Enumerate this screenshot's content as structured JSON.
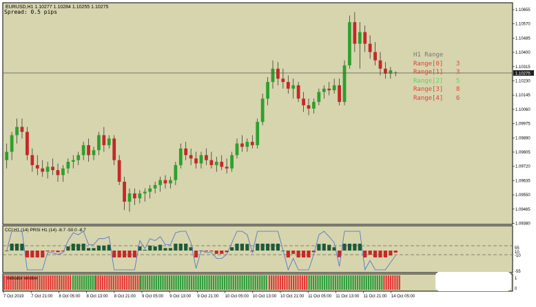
{
  "header": {
    "symbol_line": "EURUSD,H1  1.10277 1.10284 1.10255 1.10275",
    "spread": "Spread:  0.5 pips"
  },
  "price_axis": {
    "labels": [
      "1.10655",
      "1.10570",
      "1.10485",
      "1.10400",
      "1.10315",
      "1.10230",
      "1.10145",
      "1.10060",
      "1.09975",
      "1.09890",
      "1.09805",
      "1.09720",
      "1.09635",
      "1.09550",
      "1.09465",
      "1.09380"
    ],
    "current_price": "1.10275"
  },
  "range_panel": {
    "title": "H1 Range",
    "rows": [
      {
        "label": "Range[0]",
        "value": "3",
        "color": "#e0403a"
      },
      {
        "label": "Range[1]",
        "value": "3",
        "color": "#e0403a"
      },
      {
        "label": "Range[2]",
        "value": "5",
        "color": "#5fd35f"
      },
      {
        "label": "Range[3]",
        "value": "8",
        "color": "#e0403a"
      },
      {
        "label": "Range[4]",
        "value": "6",
        "color": "#e0403a"
      }
    ]
  },
  "indicator1": {
    "label": "CCI H1 (14) PRSI H1 (14) -8.7 -50.0 -8.7",
    "axis_labels": [
      "55",
      "10",
      "-10",
      "-55"
    ]
  },
  "indicator2": {
    "label": "Indicator window",
    "axis_labels": [
      "1",
      "0"
    ]
  },
  "time_axis": {
    "labels": [
      "7 Oct 2019",
      "7 Oct 21:00",
      "8 Oct 05:00",
      "8 Oct 13:00",
      "8 Oct 21:00",
      "9 Oct 05:00",
      "9 Oct 13:00",
      "9 Oct 21:00",
      "10 Oct 05:00",
      "10 Oct 13:00",
      "10 Oct 21:00",
      "11 Oct 05:00",
      "11 Oct 13:00",
      "11 Oct 21:00",
      "14 Oct 05:00"
    ]
  },
  "colors": {
    "background": "#d6d5ad",
    "bull": "#2ea02e",
    "bear": "#c62828",
    "grid_line": "#222222"
  },
  "chart_data": {
    "type": "candlestick",
    "symbol": "EURUSD",
    "timeframe": "H1",
    "ylim": [
      1.0938,
      1.1068
    ],
    "candles": [
      [
        1.0975,
        1.0985,
        1.097,
        1.098
      ],
      [
        1.098,
        1.0992,
        1.0975,
        1.099
      ],
      [
        1.099,
        1.1,
        1.0985,
        1.0995
      ],
      [
        1.0995,
        1.1,
        1.0988,
        1.0992
      ],
      [
        1.0992,
        1.0995,
        1.0975,
        1.0978
      ],
      [
        1.0978,
        1.0982,
        1.0968,
        1.0972
      ],
      [
        1.0972,
        1.0978,
        1.0966,
        1.097
      ],
      [
        1.097,
        1.0975,
        1.0965,
        1.0968
      ],
      [
        1.0968,
        1.0974,
        1.0964,
        1.0971
      ],
      [
        1.0971,
        1.0976,
        1.0966,
        1.0969
      ],
      [
        1.0969,
        1.0973,
        1.0962,
        1.0966
      ],
      [
        1.0966,
        1.0972,
        1.0962,
        1.097
      ],
      [
        1.097,
        1.0976,
        1.0967,
        1.0974
      ],
      [
        1.0974,
        1.0978,
        1.097,
        1.0975
      ],
      [
        1.0975,
        1.098,
        1.0972,
        1.0978
      ],
      [
        1.0978,
        1.0986,
        1.0975,
        1.0984
      ],
      [
        1.0984,
        1.0988,
        1.0974,
        1.0978
      ],
      [
        1.0978,
        1.0983,
        1.0975,
        1.0981
      ],
      [
        1.0981,
        1.0992,
        1.0978,
        1.099
      ],
      [
        1.099,
        1.0995,
        1.098,
        1.0984
      ],
      [
        1.0984,
        1.099,
        1.0982,
        1.0988
      ],
      [
        1.0988,
        1.099,
        1.0972,
        1.0975
      ],
      [
        1.0975,
        1.0978,
        1.096,
        1.0962
      ],
      [
        1.0962,
        1.0965,
        1.0945,
        1.095
      ],
      [
        1.095,
        1.0958,
        1.0944,
        1.0955
      ],
      [
        1.0955,
        1.0958,
        1.0948,
        1.0952
      ],
      [
        1.0952,
        1.0957,
        1.0949,
        1.0955
      ],
      [
        1.0955,
        1.0958,
        1.095,
        1.0956
      ],
      [
        1.0956,
        1.096,
        1.0952,
        1.0958
      ],
      [
        1.0958,
        1.0962,
        1.0955,
        1.096
      ],
      [
        1.096,
        1.0965,
        1.0956,
        1.0963
      ],
      [
        1.0963,
        1.0966,
        1.0958,
        1.0961
      ],
      [
        1.0961,
        1.0965,
        1.0958,
        1.0963
      ],
      [
        1.0963,
        1.0974,
        1.096,
        1.0972
      ],
      [
        1.0972,
        1.0985,
        1.097,
        1.0982
      ],
      [
        1.0982,
        1.0986,
        1.0975,
        1.0978
      ],
      [
        1.0978,
        1.0982,
        1.0972,
        1.0976
      ],
      [
        1.0976,
        1.098,
        1.097,
        1.0973
      ],
      [
        1.0973,
        1.098,
        1.097,
        1.0978
      ],
      [
        1.0978,
        1.0982,
        1.0972,
        1.0975
      ],
      [
        1.0975,
        1.098,
        1.097,
        1.0972
      ],
      [
        1.0972,
        1.0977,
        1.0968,
        1.0974
      ],
      [
        1.0974,
        1.0978,
        1.0969,
        1.0971
      ],
      [
        1.0971,
        1.0976,
        1.0967,
        1.097
      ],
      [
        1.097,
        1.098,
        1.0968,
        1.0978
      ],
      [
        1.0978,
        1.0988,
        1.0976,
        1.0985
      ],
      [
        1.0985,
        1.099,
        1.098,
        1.0983
      ],
      [
        1.0983,
        1.0988,
        1.098,
        1.0986
      ],
      [
        1.0986,
        1.099,
        1.0982,
        1.0984
      ],
      [
        1.0984,
        1.1,
        1.0982,
        1.0998
      ],
      [
        1.0998,
        1.1015,
        1.0996,
        1.1012
      ],
      [
        1.1012,
        1.1025,
        1.1008,
        1.1022
      ],
      [
        1.1022,
        1.1035,
        1.1018,
        1.103
      ],
      [
        1.103,
        1.1034,
        1.102,
        1.1024
      ],
      [
        1.1024,
        1.103,
        1.1018,
        1.1022
      ],
      [
        1.1022,
        1.1026,
        1.1015,
        1.1018
      ],
      [
        1.1018,
        1.1024,
        1.1012,
        1.102
      ],
      [
        1.102,
        1.1022,
        1.101,
        1.1012
      ],
      [
        1.1012,
        1.1016,
        1.1004,
        1.1008
      ],
      [
        1.1008,
        1.1012,
        1.1002,
        1.1006
      ],
      [
        1.1006,
        1.1012,
        1.1003,
        1.101
      ],
      [
        1.101,
        1.1018,
        1.1008,
        1.1016
      ],
      [
        1.1016,
        1.102,
        1.1012,
        1.1018
      ],
      [
        1.1018,
        1.1022,
        1.1014,
        1.1017
      ],
      [
        1.1017,
        1.1024,
        1.1015,
        1.102
      ],
      [
        1.102,
        1.1024,
        1.1008,
        1.101
      ],
      [
        1.101,
        1.1035,
        1.1008,
        1.1032
      ],
      [
        1.1032,
        1.1062,
        1.103,
        1.1058
      ],
      [
        1.1058,
        1.1064,
        1.104,
        1.1045
      ],
      [
        1.1045,
        1.1058,
        1.103,
        1.1052
      ],
      [
        1.1052,
        1.1056,
        1.104,
        1.1045
      ],
      [
        1.1045,
        1.105,
        1.1036,
        1.104
      ],
      [
        1.104,
        1.1046,
        1.1032,
        1.1035
      ],
      [
        1.1035,
        1.104,
        1.1026,
        1.103
      ],
      [
        1.103,
        1.1034,
        1.1024,
        1.1027
      ],
      [
        1.1027,
        1.1031,
        1.1024,
        1.1029
      ],
      [
        1.10277,
        1.10284,
        1.10255,
        1.10275
      ]
    ]
  }
}
